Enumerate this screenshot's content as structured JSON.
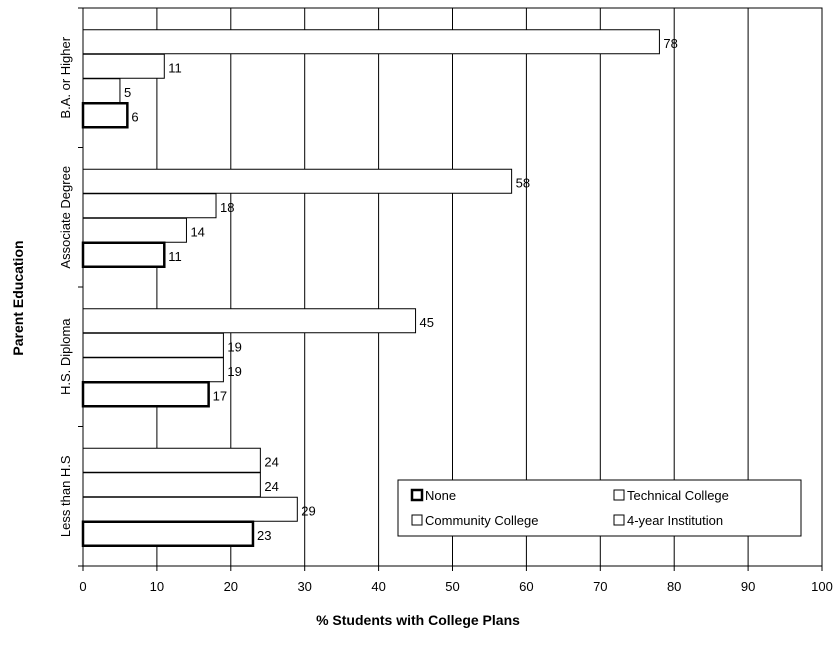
{
  "chart_data": {
    "type": "bar",
    "orientation": "horizontal",
    "ylabel": "Parent Education",
    "xlabel": "% Students with College Plans",
    "xlim": [
      0,
      100
    ],
    "xticks": [
      "0",
      "10",
      "20",
      "30",
      "40",
      "50",
      "60",
      "70",
      "80",
      "90",
      "100"
    ],
    "categories": [
      "B.A. or Higher",
      "Associate Degree",
      "H.S. Diploma",
      "Less than H.S"
    ],
    "series": [
      {
        "name": "4-year Institution",
        "values": [
          78,
          58,
          45,
          24
        ]
      },
      {
        "name": "Technical College",
        "values": [
          11,
          18,
          19,
          24
        ]
      },
      {
        "name": "Community College",
        "values": [
          5,
          14,
          19,
          29
        ]
      },
      {
        "name": "None",
        "values": [
          6,
          11,
          17,
          23
        ]
      }
    ],
    "legend": {
      "placement": "bottom-right",
      "entries": [
        "None",
        "Technical College",
        "Community College",
        "4-year Institution"
      ]
    },
    "grid": true
  }
}
